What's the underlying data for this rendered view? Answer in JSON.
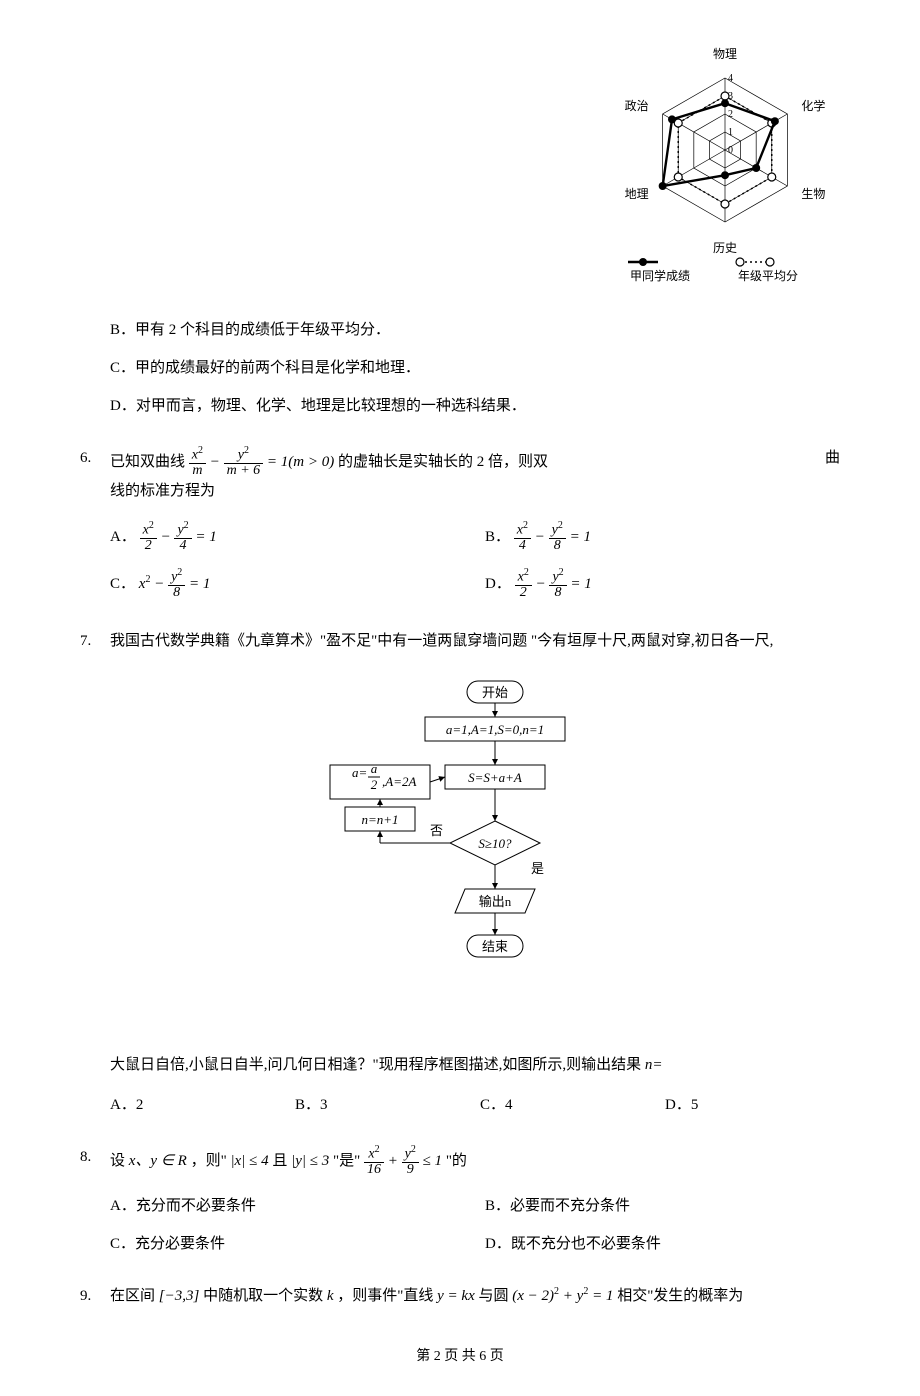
{
  "q5": {
    "opt_b": "B．甲有 2 个科目的成绩低于年级平均分．",
    "opt_c": "C．甲的成绩最好的前两个科目是化学和地理．",
    "opt_d": "D．对甲而言，物理、化学、地理是比较理想的一种选科结果．"
  },
  "radar": {
    "axes": [
      "物理",
      "化学",
      "生物",
      "历史",
      "地理",
      "政治"
    ],
    "rings": [
      1,
      2,
      3,
      4
    ],
    "ring_labels": [
      "0",
      "1",
      "2",
      "3",
      "4"
    ],
    "series_a": {
      "name": "甲同学成绩",
      "marker_filled": true,
      "values": [
        2.6,
        3.2,
        2.0,
        1.4,
        4.0,
        3.4
      ]
    },
    "series_b": {
      "name": "年级平均分",
      "marker_filled": false,
      "values": [
        3.0,
        3.0,
        3.0,
        3.0,
        3.0,
        3.0
      ]
    },
    "colors": {
      "grid": "#000000",
      "series_a_stroke": "#000000",
      "series_b_stroke": "#000000",
      "bg": "#ffffff"
    },
    "label_fontsize": 12,
    "axis_label_fontsize": 12,
    "ring_label_fontsize": 10
  },
  "q6": {
    "num": "6.",
    "stem_prefix": "已知双曲线 ",
    "eq_num1_top": "x",
    "eq_num1_bot": "m",
    "eq_num2_top": "y",
    "eq_num2_bot": "m + 6",
    "eq_tail": " = 1(m > 0)",
    "stem_mid": " 的虚轴长是实轴长的 2 倍，则双",
    "stem_right_hang": "曲",
    "stem_line2": "线的标准方程为",
    "opts": {
      "A": {
        "l": "A．",
        "n1t": "x",
        "n1b": "2",
        "n2t": "y",
        "n2b": "4"
      },
      "B": {
        "l": "B．",
        "n1t": "x",
        "n1b": "4",
        "n2t": "y",
        "n2b": "8"
      },
      "C": {
        "l": "C．",
        "lead": "x",
        "n2t": "y",
        "n2b": "8"
      },
      "D": {
        "l": "D．",
        "n1t": "x",
        "n1b": "2",
        "n2t": "y",
        "n2b": "8"
      }
    },
    "eq_eq1": " = 1"
  },
  "q7": {
    "num": "7.",
    "stem1": "我国古代数学典籍《九章算术》\"盈不足\"中有一道两鼠穿墙问题 \"今有垣厚十尺,两鼠对穿,初日各一尺,",
    "stem2": "大鼠日自倍,小鼠日自半,问几何日相逢？\"现用程序框图描述,如图所示,则输出结果 ",
    "stem2_tail_math": "n=",
    "opts": {
      "A": "A．2",
      "B": "B．3",
      "C": "C．4",
      "D": "D．5"
    },
    "flow": {
      "start": "开始",
      "init": "a=1,A=1,S=0,n=1",
      "s_step": "S=S+a+A",
      "a_step_a_top": "a",
      "a_step_a_bot": "2",
      "a_step_A": ",A=2A",
      "n_step": "n=n+1",
      "cond": "S≥10?",
      "yes": "是",
      "no": "否",
      "out": "输出n",
      "end": "结束",
      "colors": {
        "stroke": "#000000",
        "bg": "#ffffff",
        "text": "#000000"
      },
      "fontsize": 13,
      "line_width": 1
    }
  },
  "q8": {
    "num": "8.",
    "stem_pre": "设",
    "stem_xy": "x、y ∈ R",
    "stem_mid1": " ，则\"",
    "abs_x": "|x| ≤ 4",
    "and": " 且 ",
    "abs_y": "|y| ≤ 3",
    "stem_mid2": " \"是\"",
    "fr1t": "x",
    "fr1b": "16",
    "fr2t": "y",
    "fr2b": "9",
    "le1": " ≤ 1",
    "stem_tail": "\"的",
    "opts": {
      "A": "A．充分而不必要条件",
      "B": "B．必要而不充分条件",
      "C": "C．充分必要条件",
      "D": "D．既不充分也不必要条件"
    }
  },
  "q9": {
    "num": "9.",
    "stem_pre": "在区间",
    "interval": "[−3,3]",
    "stem_mid1": "中随机取一个实数",
    "k": " k ",
    "stem_mid2": "，则事件\"直线 ",
    "line_eq": "y = kx",
    "stem_mid3": " 与圆 ",
    "circle_eq_a": "(x − 2)",
    "circle_eq_b": " + y",
    "circle_eq_c": " = 1",
    "stem_tail": " 相交\"发生的概率为"
  },
  "footer": "第 2 页  共 6 页"
}
